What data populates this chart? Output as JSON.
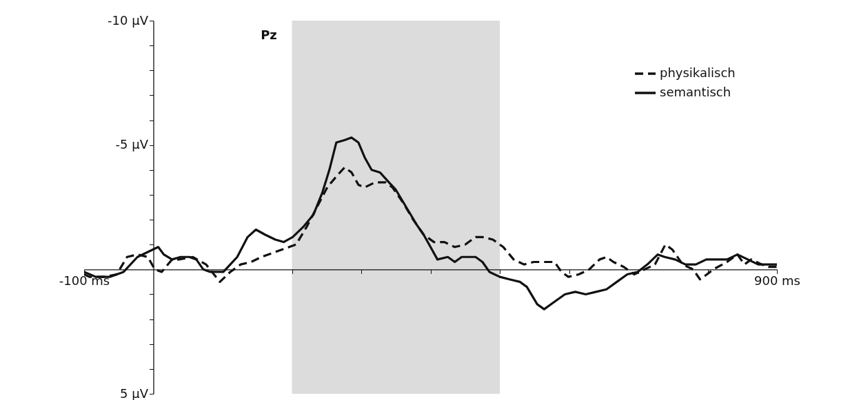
{
  "chart_data": {
    "type": "line",
    "annotations": [
      "Pz"
    ],
    "legend": "top right",
    "grid": false,
    "xlim": [
      -100,
      900
    ],
    "xticks": [
      {
        "value": -100,
        "label": "-100 ms"
      },
      {
        "value": 200,
        "label": null
      },
      {
        "value": 300,
        "label": null
      },
      {
        "value": 400,
        "label": null
      },
      {
        "value": 500,
        "label": null
      },
      {
        "value": 600,
        "label": null
      },
      {
        "value": 700,
        "label": null
      },
      {
        "value": 800,
        "label": null
      },
      {
        "value": 900,
        "label": "900 ms"
      }
    ],
    "ylim": [
      5,
      -10
    ],
    "yticks": [
      {
        "value": -10,
        "label": "-10 µV"
      },
      {
        "value": -9,
        "label": null
      },
      {
        "value": -8,
        "label": null
      },
      {
        "value": -7,
        "label": null
      },
      {
        "value": -6,
        "label": null
      },
      {
        "value": -5,
        "label": "-5 µV"
      },
      {
        "value": -4,
        "label": null
      },
      {
        "value": -3,
        "label": null
      },
      {
        "value": -2,
        "label": null
      },
      {
        "value": -1,
        "label": null
      },
      {
        "value": 1,
        "label": null
      },
      {
        "value": 2,
        "label": null
      },
      {
        "value": 3,
        "label": null
      },
      {
        "value": 4,
        "label": null
      },
      {
        "value": 5,
        "label": "5 µV"
      }
    ],
    "bands": [
      {
        "axis": "x",
        "from": 200,
        "to": 500,
        "color": "#dcdcdc"
      }
    ],
    "series": [
      {
        "name": "physikalisch",
        "color": "#111111",
        "line_style": "dashed",
        "x": [
          -100,
          -92,
          -72,
          -53,
          -38,
          -23,
          -8,
          2,
          12,
          27,
          37,
          57,
          76,
          96,
          111,
          126,
          141,
          156,
          176,
          196,
          206,
          221,
          236,
          251,
          266,
          276,
          286,
          296,
          305,
          320,
          335,
          345,
          360,
          375,
          390,
          405,
          420,
          435,
          450,
          465,
          475,
          490,
          505,
          520,
          535,
          549,
          564,
          579,
          589,
          599,
          614,
          629,
          644,
          654,
          664,
          679,
          694,
          709,
          724,
          739,
          749,
          764,
          779,
          789,
          799,
          808,
          828,
          843,
          853,
          863,
          878,
          888,
          900
        ],
        "values": [
          0.2,
          0.3,
          0.3,
          0.2,
          -0.5,
          -0.6,
          -0.5,
          0,
          0.1,
          -0.4,
          -0.4,
          -0.5,
          -0.2,
          0.5,
          0.1,
          -0.2,
          -0.3,
          -0.5,
          -0.7,
          -0.9,
          -1.0,
          -1.7,
          -2.5,
          -3.3,
          -3.8,
          -4.1,
          -3.9,
          -3.4,
          -3.3,
          -3.5,
          -3.5,
          -3.3,
          -2.7,
          -2.0,
          -1.4,
          -1.1,
          -1.1,
          -0.9,
          -1.0,
          -1.3,
          -1.3,
          -1.2,
          -0.9,
          -0.4,
          -0.2,
          -0.3,
          -0.3,
          -0.3,
          0.1,
          0.3,
          0.2,
          0,
          -0.4,
          -0.5,
          -0.3,
          -0.1,
          0.2,
          0,
          -0.2,
          -1.0,
          -0.8,
          -0.2,
          0,
          0.4,
          0.2,
          0,
          -0.3,
          -0.6,
          -0.2,
          -0.4,
          -0.2,
          -0.1,
          -0.1
        ]
      },
      {
        "name": "semantisch",
        "color": "#111111",
        "line_style": "solid",
        "x": [
          -100,
          -83,
          -63,
          -43,
          -23,
          -8,
          7,
          15,
          27,
          39,
          52,
          62,
          72,
          82,
          92,
          101,
          111,
          121,
          136,
          148,
          161,
          176,
          188,
          201,
          216,
          231,
          244,
          254,
          264,
          276,
          286,
          296,
          305,
          315,
          327,
          340,
          350,
          365,
          380,
          390,
          400,
          410,
          425,
          435,
          445,
          465,
          475,
          485,
          500,
          514,
          529,
          539,
          554,
          564,
          579,
          594,
          609,
          624,
          639,
          654,
          669,
          684,
          699,
          713,
          728,
          738,
          753,
          768,
          783,
          798,
          813,
          828,
          843,
          858,
          873,
          888,
          900
        ],
        "values": [
          0.1,
          0.3,
          0.3,
          0.1,
          -0.5,
          -0.7,
          -0.9,
          -0.6,
          -0.4,
          -0.5,
          -0.5,
          -0.4,
          0,
          0.1,
          0.1,
          0.1,
          -0.2,
          -0.5,
          -1.3,
          -1.6,
          -1.4,
          -1.2,
          -1.1,
          -1.3,
          -1.7,
          -2.2,
          -3.1,
          -4.0,
          -5.1,
          -5.2,
          -5.3,
          -5.1,
          -4.5,
          -4.0,
          -3.9,
          -3.5,
          -3.2,
          -2.5,
          -1.8,
          -1.4,
          -0.9,
          -0.4,
          -0.5,
          -0.3,
          -0.5,
          -0.5,
          -0.3,
          0.1,
          0.3,
          0.4,
          0.5,
          0.7,
          1.4,
          1.6,
          1.3,
          1.0,
          0.9,
          1.0,
          0.9,
          0.8,
          0.5,
          0.2,
          0.1,
          -0.2,
          -0.6,
          -0.5,
          -0.4,
          -0.2,
          -0.2,
          -0.4,
          -0.4,
          -0.4,
          -0.6,
          -0.4,
          -0.2,
          -0.2,
          -0.2
        ]
      }
    ]
  }
}
